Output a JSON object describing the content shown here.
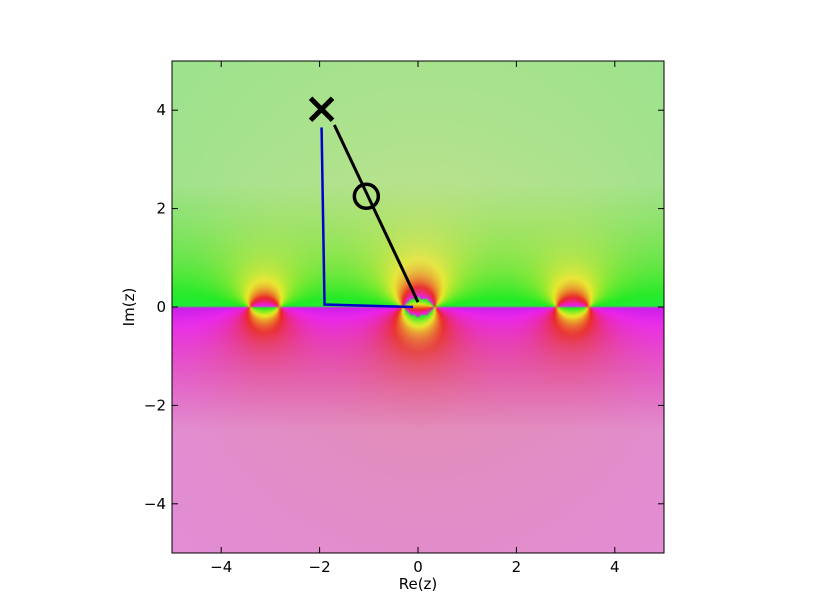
{
  "chart_data": {
    "type": "heatmap",
    "title": "",
    "xlabel": "Re(z)",
    "ylabel": "Im(z)",
    "xlim": [
      -5,
      5
    ],
    "ylim": [
      -5,
      5
    ],
    "grid": false,
    "x_ticks": [
      -4,
      -2,
      0,
      2,
      4
    ],
    "y_ticks": [
      -4,
      -2,
      0,
      2,
      4
    ],
    "x_tick_labels": [
      "−4",
      "−2",
      "0",
      "2",
      "4"
    ],
    "y_tick_labels": [
      "−4",
      "−2",
      "0",
      "2",
      "4"
    ],
    "heatmap": {
      "description": "domain coloring of a complex function, pattern periodic in Re(z)",
      "period_re": 3.14159,
      "zeros": [
        [
          -3.4,
          0.0
        ],
        [
          -0.3,
          0.0
        ],
        [
          2.8,
          0.0
        ]
      ],
      "poles": [
        [
          -2.8,
          0.0
        ],
        [
          0.3,
          0.0
        ],
        [
          3.5,
          0.0
        ]
      ]
    },
    "overlays": [
      {
        "kind": "polyline",
        "color": "#0000cc",
        "points": [
          [
            -1.96,
            3.65
          ],
          [
            -1.9,
            0.05
          ],
          [
            -0.1,
            0.0
          ]
        ]
      },
      {
        "kind": "line",
        "color": "#000000",
        "points": [
          [
            -1.7,
            3.7
          ],
          [
            0.0,
            0.1
          ]
        ]
      },
      {
        "kind": "marker",
        "marker": "x",
        "color": "#000000",
        "point": [
          -1.96,
          4.02
        ]
      },
      {
        "kind": "marker",
        "marker": "o",
        "color": "#000000",
        "point": [
          -1.05,
          2.25
        ]
      }
    ]
  }
}
